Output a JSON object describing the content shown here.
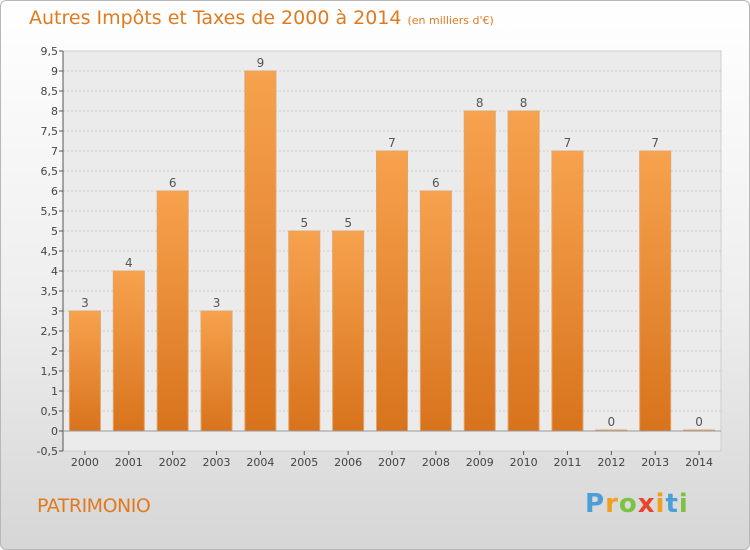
{
  "chart_data": {
    "type": "bar",
    "title": "Autres Impôts et Taxes de 2000 à 2014",
    "subtitle": "(en milliers d'€)",
    "categories": [
      "2000",
      "2001",
      "2002",
      "2003",
      "2004",
      "2005",
      "2006",
      "2007",
      "2008",
      "2009",
      "2010",
      "2011",
      "2012",
      "2013",
      "2014"
    ],
    "values": [
      3,
      4,
      6,
      3,
      9,
      5,
      5,
      7,
      6,
      8,
      8,
      7,
      0,
      7,
      0
    ],
    "data_labels": [
      "3",
      "4",
      "6",
      "3",
      "9",
      "5",
      "5",
      "7",
      "6",
      "8",
      "8",
      "7",
      "0",
      "7",
      "0"
    ],
    "ylim": [
      -0.5,
      9.5
    ],
    "yticks": [
      "-0,5",
      "0",
      "0,5",
      "1",
      "1,5",
      "2",
      "2,5",
      "3",
      "3,5",
      "4",
      "4,5",
      "5",
      "5,5",
      "6",
      "6,5",
      "7",
      "7,5",
      "8",
      "8,5",
      "9",
      "9,5"
    ],
    "grid": true,
    "bar_color": "#f0943a"
  },
  "footer": {
    "commune": "PATRIMONIO",
    "logo_letters": [
      "P",
      "r",
      "o",
      "x",
      "i",
      "t",
      "i"
    ],
    "logo_colors": [
      "#4a9fd8",
      "#f0a020",
      "#7cc242",
      "#e8452c",
      "#f0a020",
      "#4a9fd8",
      "#7cc242"
    ]
  }
}
